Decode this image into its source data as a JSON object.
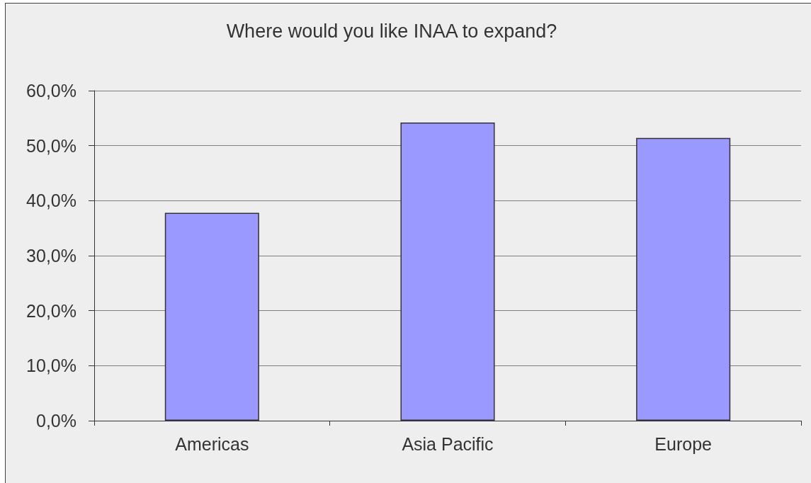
{
  "chart_data": {
    "type": "bar",
    "title": "Where would you like INAA to expand?",
    "categories": [
      "Americas",
      "Asia Pacific",
      "Europe"
    ],
    "values": [
      37.8,
      54.2,
      51.4
    ],
    "color": "#9999ff",
    "ylim": [
      0,
      60
    ],
    "yticks": [
      {
        "value": 0,
        "label": "0,0%"
      },
      {
        "value": 10,
        "label": "10,0%"
      },
      {
        "value": 20,
        "label": "20,0%"
      },
      {
        "value": 30,
        "label": "30,0%"
      },
      {
        "value": 40,
        "label": "40,0%"
      },
      {
        "value": 50,
        "label": "50,0%"
      },
      {
        "value": 60,
        "label": "60,0%"
      }
    ],
    "grid": "y"
  }
}
